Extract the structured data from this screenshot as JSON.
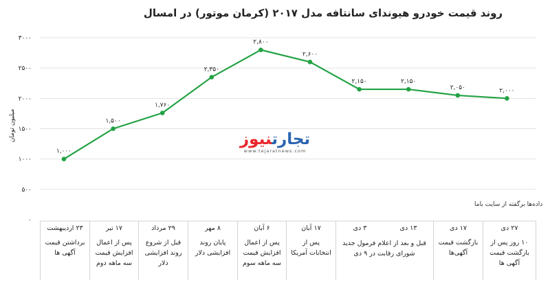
{
  "chart_data": {
    "type": "line",
    "title": "روند قیمت خودرو هیوندای سانتافه مدل ۲۰۱۷ (کرمان موتور) در امسال",
    "ylabel": "میلیون تومان",
    "xlabel": "",
    "ylim": [
      0,
      3000
    ],
    "yticks": [
      "۰",
      "۵۰۰",
      "۱۰۰۰",
      "۱۵۰۰",
      "۲۰۰۰",
      "۲۵۰۰",
      "۳۰۰۰"
    ],
    "y_tick_values": [
      0,
      500,
      1000,
      1500,
      2000,
      2500,
      3000
    ],
    "grid": true,
    "line_color": "#23a244",
    "values": [
      1000,
      1500,
      1760,
      2350,
      2800,
      2600,
      2150,
      2150,
      2050,
      2000
    ],
    "data_labels": [
      "۱,۰۰۰",
      "۱,۵۰۰",
      "۱,۷۶۰",
      "۲,۳۵۰",
      "۲,۸۰۰",
      "۲,۶۰۰",
      "۲,۱۵۰",
      "۲,۱۵۰",
      "۲,۰۵۰",
      "۲,۰۰۰"
    ],
    "categories": [
      {
        "date": "۲۳ اردیبهشت",
        "desc": "برداشتن قیمت آگهی ها"
      },
      {
        "date": "۱۷ تیر",
        "desc": "پس از اعمال افزایش قیمت سه ماهه دوم"
      },
      {
        "date": "۲۹ مرداد",
        "desc": "قبل از شروع روند افزایشی دلار"
      },
      {
        "date": "۸ مهر",
        "desc": "پایان روند افزایشی دلار"
      },
      {
        "date": "۶ آبان",
        "desc": "پس از اعمال افزایش قیمت سه ماهه سوم"
      },
      {
        "date": "۱۷ آبان",
        "desc": "پس از انتخابات آمریکا"
      },
      {
        "date": "۳ دی",
        "desc": ""
      },
      {
        "date": "۱۳ دی",
        "desc": ""
      },
      {
        "date": "۱۷ دی",
        "desc": "بازگشت قیمت آگهی‌ها"
      },
      {
        "date": "۲۷ دی",
        "desc": "۱۰ روز پس از بازگشت قیمت آگهی ها"
      }
    ],
    "merged_desc": "قبل و بعد از اعلام فرمول جدید شورای رقابت در ۹ دی"
  },
  "source_note": "داده‌ها برگفته از سایت باما",
  "logo": {
    "name_part1": "تجارت",
    "name_part2": "نیوز",
    "url": "www.tejaratnews.com"
  }
}
